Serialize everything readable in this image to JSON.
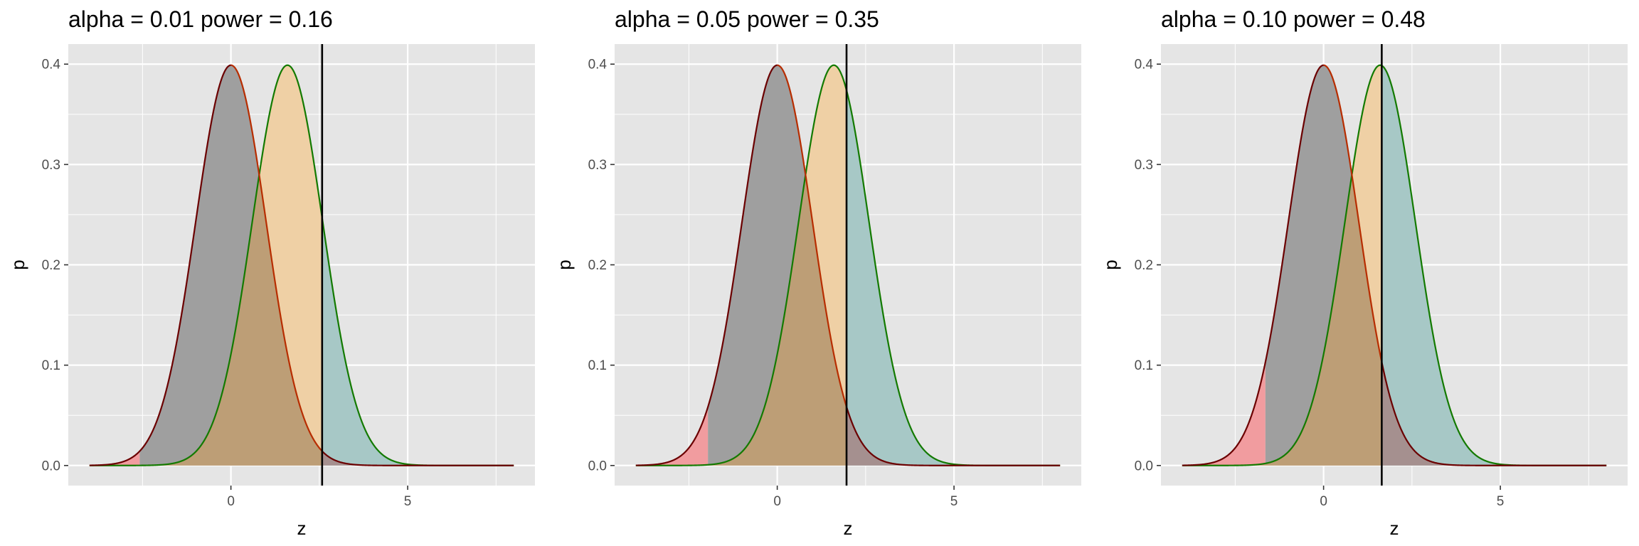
{
  "chart_data": [
    {
      "type": "area",
      "title": "alpha = 0.01  power = 0.16",
      "xlabel": "z",
      "ylabel": "p",
      "alpha": 0.01,
      "power": 0.16,
      "critical_value": 2.58,
      "effect_mean": 1.6,
      "x_range": [
        -4,
        8
      ],
      "xlim": [
        -4.6,
        8.6
      ],
      "ylim": [
        -0.02,
        0.42
      ],
      "x_ticks": [
        0,
        5
      ],
      "y_ticks": [
        0.0,
        0.1,
        0.2,
        0.3,
        0.4
      ],
      "x_tick_labels": [
        "0",
        "5"
      ],
      "y_tick_labels": [
        "0.0",
        "0.1",
        "0.2",
        "0.3",
        "0.4"
      ],
      "grid": true,
      "series": [
        {
          "mean": 0,
          "sd": 1,
          "line_color": "#6b0000"
        },
        {
          "mean": 1.6,
          "sd": 1,
          "line_color": "#137a00"
        }
      ]
    },
    {
      "type": "area",
      "title": "alpha = 0.05  power = 0.35",
      "xlabel": "z",
      "ylabel": "p",
      "alpha": 0.05,
      "power": 0.35,
      "critical_value": 1.96,
      "effect_mean": 1.6,
      "x_range": [
        -4,
        8
      ],
      "xlim": [
        -4.6,
        8.6
      ],
      "ylim": [
        -0.02,
        0.42
      ],
      "x_ticks": [
        0,
        5
      ],
      "y_ticks": [
        0.0,
        0.1,
        0.2,
        0.3,
        0.4
      ],
      "x_tick_labels": [
        "0",
        "5"
      ],
      "y_tick_labels": [
        "0.0",
        "0.1",
        "0.2",
        "0.3",
        "0.4"
      ],
      "grid": true,
      "series": [
        {
          "mean": 0,
          "sd": 1,
          "line_color": "#6b0000"
        },
        {
          "mean": 1.6,
          "sd": 1,
          "line_color": "#137a00"
        }
      ]
    },
    {
      "type": "area",
      "title": "alpha = 0.10  power = 0.48",
      "xlabel": "z",
      "ylabel": "p",
      "alpha": 0.1,
      "power": 0.48,
      "critical_value": 1.645,
      "effect_mean": 1.6,
      "x_range": [
        -4,
        8
      ],
      "xlim": [
        -4.6,
        8.6
      ],
      "ylim": [
        -0.02,
        0.42
      ],
      "x_ticks": [
        0,
        5
      ],
      "y_ticks": [
        0.0,
        0.1,
        0.2,
        0.3,
        0.4
      ],
      "x_tick_labels": [
        "0",
        "5"
      ],
      "y_tick_labels": [
        "0.0",
        "0.1",
        "0.2",
        "0.3",
        "0.4"
      ],
      "grid": true,
      "series": [
        {
          "mean": 0,
          "sd": 1,
          "line_color": "#6b0000"
        },
        {
          "mean": 1.6,
          "sd": 1,
          "line_color": "#137a00"
        }
      ]
    }
  ],
  "colors": {
    "panel_background": "#e5e5e5",
    "grid_line": "#ffffff",
    "null_left_tail": "#f19c9f",
    "null_body": "#9f9f9f",
    "alt_beta": "#efd0a5",
    "overlap": "#bd9e76",
    "alt_power": "#a7c8c6",
    "null_right_tail": "#a5908f",
    "null_line_right": "#b72d00",
    "critical_line": "#000000"
  }
}
